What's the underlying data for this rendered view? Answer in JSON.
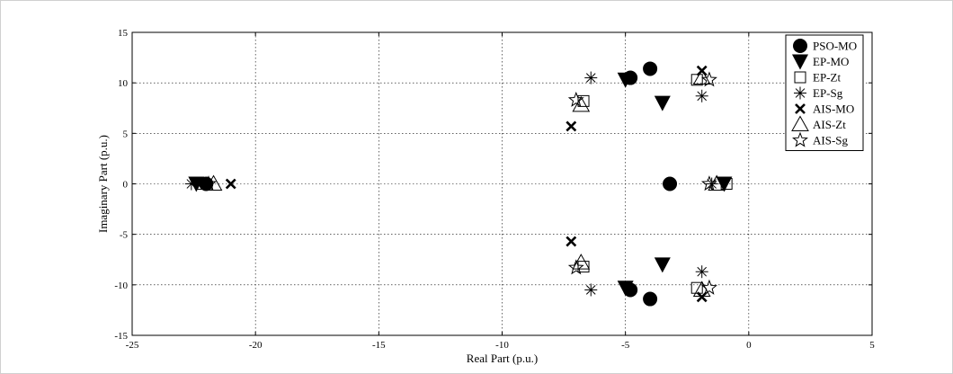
{
  "chart_data": {
    "type": "scatter",
    "title": "",
    "xlabel": "Real Part (p.u.)",
    "ylabel": "Imaginary Part (p.u.)",
    "xlim": [
      -25,
      5
    ],
    "ylim": [
      -15,
      15
    ],
    "xticks": [
      "-25",
      "-20",
      "-15",
      "-10",
      "-5",
      "0",
      "5"
    ],
    "yticks": [
      "15",
      "10",
      "5",
      "0",
      "-5",
      "-10",
      "-15"
    ],
    "grid": true,
    "legend_position": "top-right",
    "series": [
      {
        "name": "PSO-MO",
        "marker": "circle",
        "points": [
          [
            -22,
            0
          ],
          [
            -3.2,
            0
          ],
          [
            -4.8,
            10.5
          ],
          [
            -4.8,
            -10.5
          ],
          [
            -4.0,
            11.4
          ],
          [
            -4.0,
            -11.4
          ]
        ]
      },
      {
        "name": "EP-MO",
        "marker": "triangle-down",
        "points": [
          [
            -22.4,
            0
          ],
          [
            -1.0,
            0
          ],
          [
            -5.0,
            10.3
          ],
          [
            -5.0,
            -10.3
          ],
          [
            -3.5,
            8.0
          ],
          [
            -3.5,
            -8.0
          ]
        ]
      },
      {
        "name": "EP-Zt",
        "marker": "square",
        "points": [
          [
            -22.2,
            0
          ],
          [
            -0.9,
            0
          ],
          [
            -6.7,
            8.2
          ],
          [
            -6.7,
            -8.2
          ],
          [
            -2.1,
            10.3
          ],
          [
            -2.1,
            -10.3
          ]
        ]
      },
      {
        "name": "EP-Sg",
        "marker": "asterisk",
        "points": [
          [
            -22.6,
            0
          ],
          [
            -1.5,
            0
          ],
          [
            -6.4,
            10.5
          ],
          [
            -6.4,
            -10.5
          ],
          [
            -1.9,
            8.7
          ],
          [
            -1.9,
            -8.7
          ]
        ]
      },
      {
        "name": "AIS-MO",
        "marker": "x",
        "points": [
          [
            -21.0,
            0
          ],
          [
            -7.2,
            5.7
          ],
          [
            -7.2,
            -5.7
          ],
          [
            -1.9,
            11.2
          ],
          [
            -1.9,
            -11.2
          ]
        ]
      },
      {
        "name": "AIS-Zt",
        "marker": "triangle-up",
        "points": [
          [
            -21.7,
            0
          ],
          [
            -1.3,
            0
          ],
          [
            -6.8,
            7.8
          ],
          [
            -6.8,
            -7.8
          ],
          [
            -1.9,
            10.5
          ],
          [
            -1.9,
            -10.5
          ]
        ]
      },
      {
        "name": "AIS-Sg",
        "marker": "star",
        "points": [
          [
            -21.9,
            0
          ],
          [
            -1.6,
            0
          ],
          [
            -7.0,
            8.3
          ],
          [
            -7.0,
            -8.3
          ],
          [
            -1.6,
            10.3
          ],
          [
            -1.6,
            -10.3
          ]
        ]
      }
    ]
  }
}
